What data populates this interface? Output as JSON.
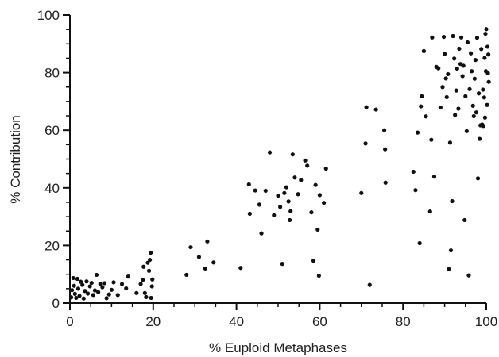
{
  "chart_data": {
    "type": "scatter",
    "title": "",
    "xlabel": "% Euploid Metaphases",
    "ylabel": "% Contribution",
    "xlim": [
      0,
      100
    ],
    "ylim": [
      0,
      100
    ],
    "x_ticks": [
      0,
      20,
      40,
      60,
      80,
      100
    ],
    "y_ticks": [
      0,
      20,
      40,
      60,
      80,
      100
    ],
    "x_minor_step": 5,
    "y_minor_step": 5,
    "grid": false,
    "legend": "none",
    "marker_color": "#111111",
    "series": [
      {
        "points": [
          [
            0.3,
            2.0
          ],
          [
            0.5,
            4.5
          ],
          [
            0.8,
            8.7
          ],
          [
            1.0,
            6.0
          ],
          [
            1.2,
            3.2
          ],
          [
            1.5,
            1.8
          ],
          [
            1.8,
            8.4
          ],
          [
            2.0,
            5.0
          ],
          [
            2.3,
            2.5
          ],
          [
            2.6,
            7.4
          ],
          [
            3.0,
            6.3
          ],
          [
            3.3,
            1.6
          ],
          [
            3.6,
            4.2
          ],
          [
            4.0,
            7.5
          ],
          [
            4.3,
            3.3
          ],
          [
            4.8,
            5.8
          ],
          [
            5.2,
            7.0
          ],
          [
            5.6,
            2.8
          ],
          [
            6.0,
            4.4
          ],
          [
            6.4,
            9.8
          ],
          [
            6.8,
            3.8
          ],
          [
            7.3,
            6.7
          ],
          [
            7.8,
            5.5
          ],
          [
            8.3,
            6.9
          ],
          [
            8.8,
            1.7
          ],
          [
            9.4,
            3.0
          ],
          [
            10.0,
            4.6
          ],
          [
            10.5,
            7.2
          ],
          [
            11.5,
            2.8
          ],
          [
            12.5,
            6.6
          ],
          [
            13.5,
            5.1
          ],
          [
            14.0,
            9.2
          ],
          [
            16.0,
            3.5
          ],
          [
            17.0,
            6.6
          ],
          [
            17.5,
            8.0
          ],
          [
            17.7,
            12.6
          ],
          [
            18.0,
            3.5
          ],
          [
            18.3,
            2.1
          ],
          [
            18.7,
            14.0
          ],
          [
            19.0,
            11.2
          ],
          [
            19.2,
            15.0
          ],
          [
            19.4,
            17.5
          ],
          [
            19.5,
            1.8
          ],
          [
            19.7,
            5.8
          ],
          [
            19.8,
            8.2
          ],
          [
            28.0,
            9.8
          ],
          [
            29.0,
            19.4
          ],
          [
            31.0,
            16.0
          ],
          [
            32.5,
            12.0
          ],
          [
            33.0,
            21.4
          ],
          [
            34.5,
            14.1
          ],
          [
            41.0,
            12.2
          ],
          [
            43.0,
            41.2
          ],
          [
            43.2,
            31.0
          ],
          [
            44.5,
            39.1
          ],
          [
            45.5,
            34.2
          ],
          [
            46.0,
            24.2
          ],
          [
            47.0,
            39.0
          ],
          [
            48.0,
            52.3
          ],
          [
            49.0,
            30.5
          ],
          [
            50.0,
            37.3
          ],
          [
            50.5,
            33.4
          ],
          [
            51.0,
            13.6
          ],
          [
            51.5,
            38.2
          ],
          [
            52.0,
            40.2
          ],
          [
            52.5,
            35.3
          ],
          [
            52.8,
            28.8
          ],
          [
            53.0,
            31.9
          ],
          [
            53.5,
            51.6
          ],
          [
            54.0,
            43.6
          ],
          [
            54.8,
            37.8
          ],
          [
            55.5,
            42.7
          ],
          [
            56.5,
            49.5
          ],
          [
            57.0,
            47.7
          ],
          [
            58.0,
            31.5
          ],
          [
            58.5,
            14.7
          ],
          [
            59.0,
            41.0
          ],
          [
            59.5,
            25.5
          ],
          [
            59.8,
            9.5
          ],
          [
            60.0,
            37.5
          ],
          [
            61.0,
            34.8
          ],
          [
            61.5,
            46.7
          ],
          [
            70.0,
            38.2
          ],
          [
            71.0,
            55.4
          ],
          [
            71.2,
            68.0
          ],
          [
            72.0,
            6.3
          ],
          [
            73.5,
            67.2
          ],
          [
            75.5,
            60.0
          ],
          [
            75.7,
            53.4
          ],
          [
            75.8,
            41.8
          ],
          [
            82.5,
            45.6
          ],
          [
            83.0,
            39.2
          ],
          [
            83.5,
            59.2
          ],
          [
            84.0,
            20.8
          ],
          [
            84.3,
            68.3
          ],
          [
            84.5,
            71.8
          ],
          [
            85.0,
            87.5
          ],
          [
            85.5,
            64.8
          ],
          [
            86.5,
            31.8
          ],
          [
            86.8,
            56.7
          ],
          [
            87.0,
            92.2
          ],
          [
            87.5,
            43.9
          ],
          [
            88.0,
            82.0
          ],
          [
            88.5,
            81.5
          ],
          [
            89.0,
            67.9
          ],
          [
            89.5,
            75.0
          ],
          [
            89.8,
            92.4
          ],
          [
            90.0,
            86.5
          ],
          [
            90.3,
            78.0
          ],
          [
            90.5,
            71.5
          ],
          [
            90.8,
            79.5
          ],
          [
            91.0,
            11.8
          ],
          [
            91.3,
            55.7
          ],
          [
            91.5,
            18.3
          ],
          [
            91.8,
            35.4
          ],
          [
            92.0,
            92.7
          ],
          [
            92.3,
            84.9
          ],
          [
            92.5,
            65.3
          ],
          [
            92.8,
            73.8
          ],
          [
            93.0,
            81.4
          ],
          [
            93.3,
            67.5
          ],
          [
            93.5,
            88.3
          ],
          [
            93.8,
            83.0
          ],
          [
            94.0,
            92.2
          ],
          [
            94.3,
            78.8
          ],
          [
            94.5,
            82.4
          ],
          [
            94.8,
            28.8
          ],
          [
            95.0,
            71.8
          ],
          [
            95.3,
            59.7
          ],
          [
            95.5,
            90.5
          ],
          [
            95.8,
            9.6
          ],
          [
            96.0,
            74.3
          ],
          [
            96.3,
            86.7
          ],
          [
            96.5,
            80.5
          ],
          [
            96.8,
            68.5
          ],
          [
            97.0,
            64.9
          ],
          [
            97.2,
            77.9
          ],
          [
            97.4,
            84.4
          ],
          [
            97.6,
            66.2
          ],
          [
            97.8,
            92.1
          ],
          [
            98.0,
            43.3
          ],
          [
            98.2,
            72.8
          ],
          [
            98.4,
            57.0
          ],
          [
            98.6,
            61.7
          ],
          [
            98.8,
            88.2
          ],
          [
            99.0,
            62.0
          ],
          [
            99.2,
            74.1
          ],
          [
            99.3,
            61.5
          ],
          [
            99.5,
            71.4
          ],
          [
            99.6,
            85.1
          ],
          [
            99.7,
            64.4
          ],
          [
            99.8,
            93.5
          ],
          [
            99.9,
            80.5
          ],
          [
            100.0,
            95.1
          ],
          [
            100.2,
            68.8
          ],
          [
            100.3,
            89.0
          ],
          [
            100.4,
            79.8
          ],
          [
            100.5,
            86.3
          ],
          [
            100.6,
            76.8
          ]
        ]
      }
    ]
  }
}
